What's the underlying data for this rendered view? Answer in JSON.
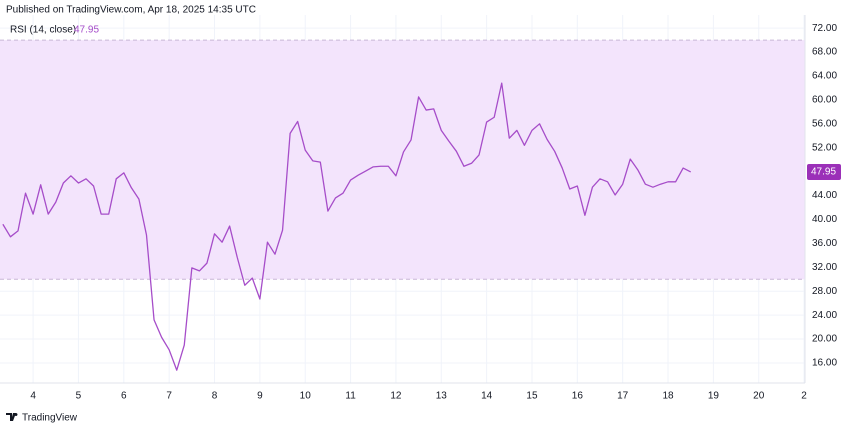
{
  "header": {
    "published": "Published on TradingView.com, Apr 18, 2025 14:35 UTC"
  },
  "footer": {
    "brand": "TradingView"
  },
  "chart_data": {
    "type": "line",
    "title": "RSI (14, close)",
    "x": [
      3.333,
      3.5,
      3.667,
      3.833,
      4,
      4.167,
      4.333,
      4.5,
      4.667,
      4.833,
      5,
      5.167,
      5.333,
      5.5,
      5.667,
      5.833,
      6,
      6.167,
      6.333,
      6.5,
      6.667,
      6.833,
      7,
      7.167,
      7.333,
      7.5,
      7.667,
      7.833,
      8,
      8.167,
      8.333,
      8.5,
      8.667,
      8.833,
      9,
      9.167,
      9.333,
      9.5,
      9.667,
      9.833,
      10,
      10.167,
      10.333,
      10.5,
      10.667,
      10.833,
      11,
      11.167,
      11.333,
      11.5,
      11.667,
      11.833,
      12,
      12.167,
      12.333,
      12.5,
      12.667,
      12.833,
      13,
      13.167,
      13.333,
      13.5,
      13.667,
      13.833,
      14,
      14.167,
      14.333,
      14.5,
      14.667,
      14.833,
      15,
      15.167,
      15.333,
      15.5,
      15.667,
      15.833,
      16,
      16.167,
      16.333,
      16.5,
      16.667,
      16.833,
      17,
      17.167,
      17.333,
      17.5,
      17.667,
      17.833,
      18,
      18.167,
      18.333,
      18.5
    ],
    "series": [
      {
        "name": "RSI",
        "color": "#a64dc9",
        "values": [
          39.2,
          37.1,
          38.1,
          44.4,
          40.9,
          45.8,
          40.9,
          42.9,
          46.1,
          47.3,
          46.1,
          46.8,
          45.6,
          40.9,
          40.9,
          46.8,
          47.8,
          45.3,
          43.4,
          37.4,
          23.2,
          20.3,
          18.2,
          14.8,
          19.0,
          31.9,
          31.4,
          32.7,
          37.6,
          36.2,
          38.9,
          33.7,
          29.0,
          30.2,
          26.7,
          36.2,
          34.2,
          38.2,
          54.4,
          56.4,
          51.6,
          49.8,
          49.6,
          41.4,
          43.6,
          44.4,
          46.6,
          47.4,
          48.1,
          48.8,
          48.9,
          48.9,
          47.3,
          51.3,
          53.3,
          60.5,
          58.3,
          58.5,
          54.9,
          53.1,
          51.4,
          48.9,
          49.4,
          50.8,
          56.3,
          57.1,
          62.8,
          53.6,
          54.9,
          52.4,
          54.9,
          56.0,
          53.4,
          51.4,
          48.6,
          45.1,
          45.6,
          40.7,
          45.4,
          46.8,
          46.3,
          44.1,
          45.9,
          50.1,
          48.3,
          45.9,
          45.4,
          45.9,
          46.3,
          46.3,
          48.6,
          47.95
        ]
      }
    ],
    "band": [
      30,
      70
    ],
    "band_color": "#f3e4fc",
    "xlim": [
      3.27,
      21.02
    ],
    "xticks": [
      4,
      5,
      6,
      7,
      8,
      9,
      10,
      11,
      12,
      13,
      14,
      15,
      16,
      17,
      18,
      19,
      20,
      {
        "value": 21,
        "label": "2"
      }
    ],
    "ylim": [
      12.65,
      74.2
    ],
    "yticks": [
      {
        "value": 16,
        "label": "16.00"
      },
      {
        "value": 20,
        "label": "20.00"
      },
      {
        "value": 24,
        "label": "24.00"
      },
      {
        "value": 28,
        "label": "28.00"
      },
      {
        "value": 32,
        "label": "32.00"
      },
      {
        "value": 36,
        "label": "36.00"
      },
      {
        "value": 40,
        "label": "40.00"
      },
      {
        "value": 44,
        "label": "44.00"
      },
      {
        "value": 48,
        "label": "48.00"
      },
      {
        "value": 52,
        "label": "52.00"
      },
      {
        "value": 56,
        "label": "56.00"
      },
      {
        "value": 60,
        "label": "60.00"
      },
      {
        "value": 64,
        "label": "64.00"
      },
      {
        "value": 68,
        "label": "68.00"
      },
      {
        "value": 72,
        "label": "72.00"
      }
    ],
    "grid": true,
    "label_color": "#9b30b8"
  }
}
